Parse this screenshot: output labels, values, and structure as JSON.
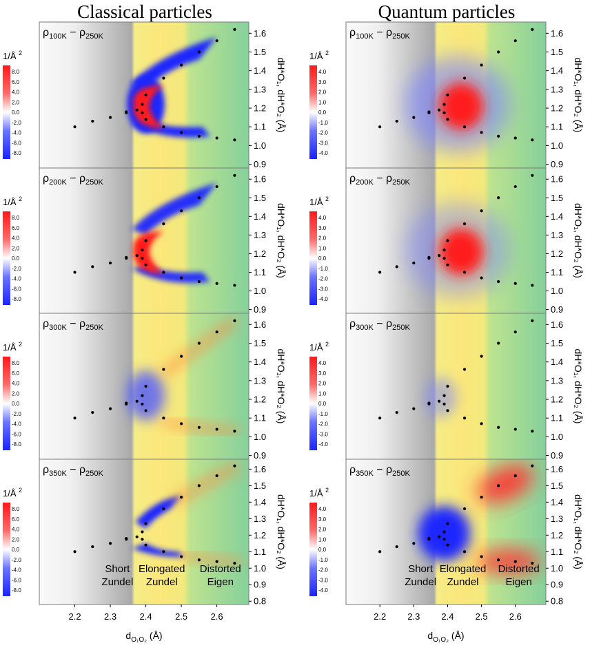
{
  "titles": {
    "left": "Classical particles",
    "right": "Quantum particles"
  },
  "panel_labels": [
    [
      "ρ",
      "100K",
      " − ρ",
      "250K"
    ],
    [
      "ρ",
      "200K",
      " − ρ",
      "250K"
    ],
    [
      "ρ",
      "300K",
      " − ρ",
      "250K"
    ],
    [
      "ρ",
      "350K",
      " − ρ",
      "250K"
    ]
  ],
  "colorbar": {
    "unit": "1/Å",
    "unit_exp": "2",
    "classical_ticks": [
      "8.0",
      "6.0",
      "4.0",
      "2.0",
      "0.0",
      "-2.0",
      "-4.0",
      "-6.0",
      "-8.0"
    ],
    "quantum_ticks": [
      "4.0",
      "3.0",
      "2.0",
      "1.0",
      "0.0",
      "-1.0",
      "-2.0",
      "-3.0",
      "-4.0"
    ]
  },
  "x_axis": {
    "label_main": "d",
    "label_sub": "O₁O₂",
    "label_unit": " (Å)",
    "ticks": [
      "2.2",
      "2.3",
      "2.4",
      "2.5",
      "2.6"
    ]
  },
  "y_axis": {
    "ticks_top": [
      "0.9",
      "1.0",
      "1.1",
      "1.2",
      "1.3",
      "1.4",
      "1.5",
      "1.6"
    ],
    "ticks_bottom": [
      "0.8",
      "0.9",
      "1.0",
      "1.1",
      "1.2",
      "1.3",
      "1.4",
      "1.5",
      "1.6"
    ],
    "label": "dH*O₁, dH*O₂ (Å)"
  },
  "regions": [
    {
      "line1": "Short",
      "line2": "Zundel"
    },
    {
      "line1": "Elongated",
      "line2": "Zundel"
    },
    {
      "line1": "Distorted",
      "line2": "Eigen"
    }
  ],
  "colors": {
    "gray": "#b4b4b4",
    "yellow": "#fbe97a",
    "green": "#8fd39a",
    "positive": "#ff2020",
    "negative": "#2030ff",
    "text": "#000000"
  },
  "chart_data": {
    "type": "heatmap",
    "description_panels": [
      "ρ100K − ρ250K",
      "ρ200K − ρ250K",
      "ρ300K − ρ250K",
      "ρ350K − ρ250K"
    ],
    "xlim": [
      2.1,
      2.69
    ],
    "ylim_top_panels": [
      0.88,
      1.66
    ],
    "ylim_bottom_panel": [
      0.78,
      1.66
    ],
    "region_bounds": [
      2.37,
      2.52
    ],
    "points": [
      [
        2.2,
        1.1
      ],
      [
        2.25,
        1.13
      ],
      [
        2.3,
        1.15
      ],
      [
        2.345,
        1.175
      ],
      [
        2.345,
        1.18
      ],
      [
        2.375,
        1.19
      ],
      [
        2.39,
        1.175
      ],
      [
        2.39,
        1.22
      ],
      [
        2.4,
        1.27
      ],
      [
        2.4,
        1.14
      ],
      [
        2.45,
        1.36
      ],
      [
        2.45,
        1.1
      ],
      [
        2.5,
        1.43
      ],
      [
        2.5,
        1.07
      ],
      [
        2.55,
        1.5
      ],
      [
        2.55,
        1.05
      ],
      [
        2.6,
        1.56
      ],
      [
        2.6,
        1.04
      ],
      [
        2.65,
        1.62
      ],
      [
        2.65,
        1.03
      ]
    ],
    "classical_colorbar_range": [
      -8.0,
      8.0
    ],
    "quantum_colorbar_range": [
      -4.0,
      4.0
    ]
  }
}
